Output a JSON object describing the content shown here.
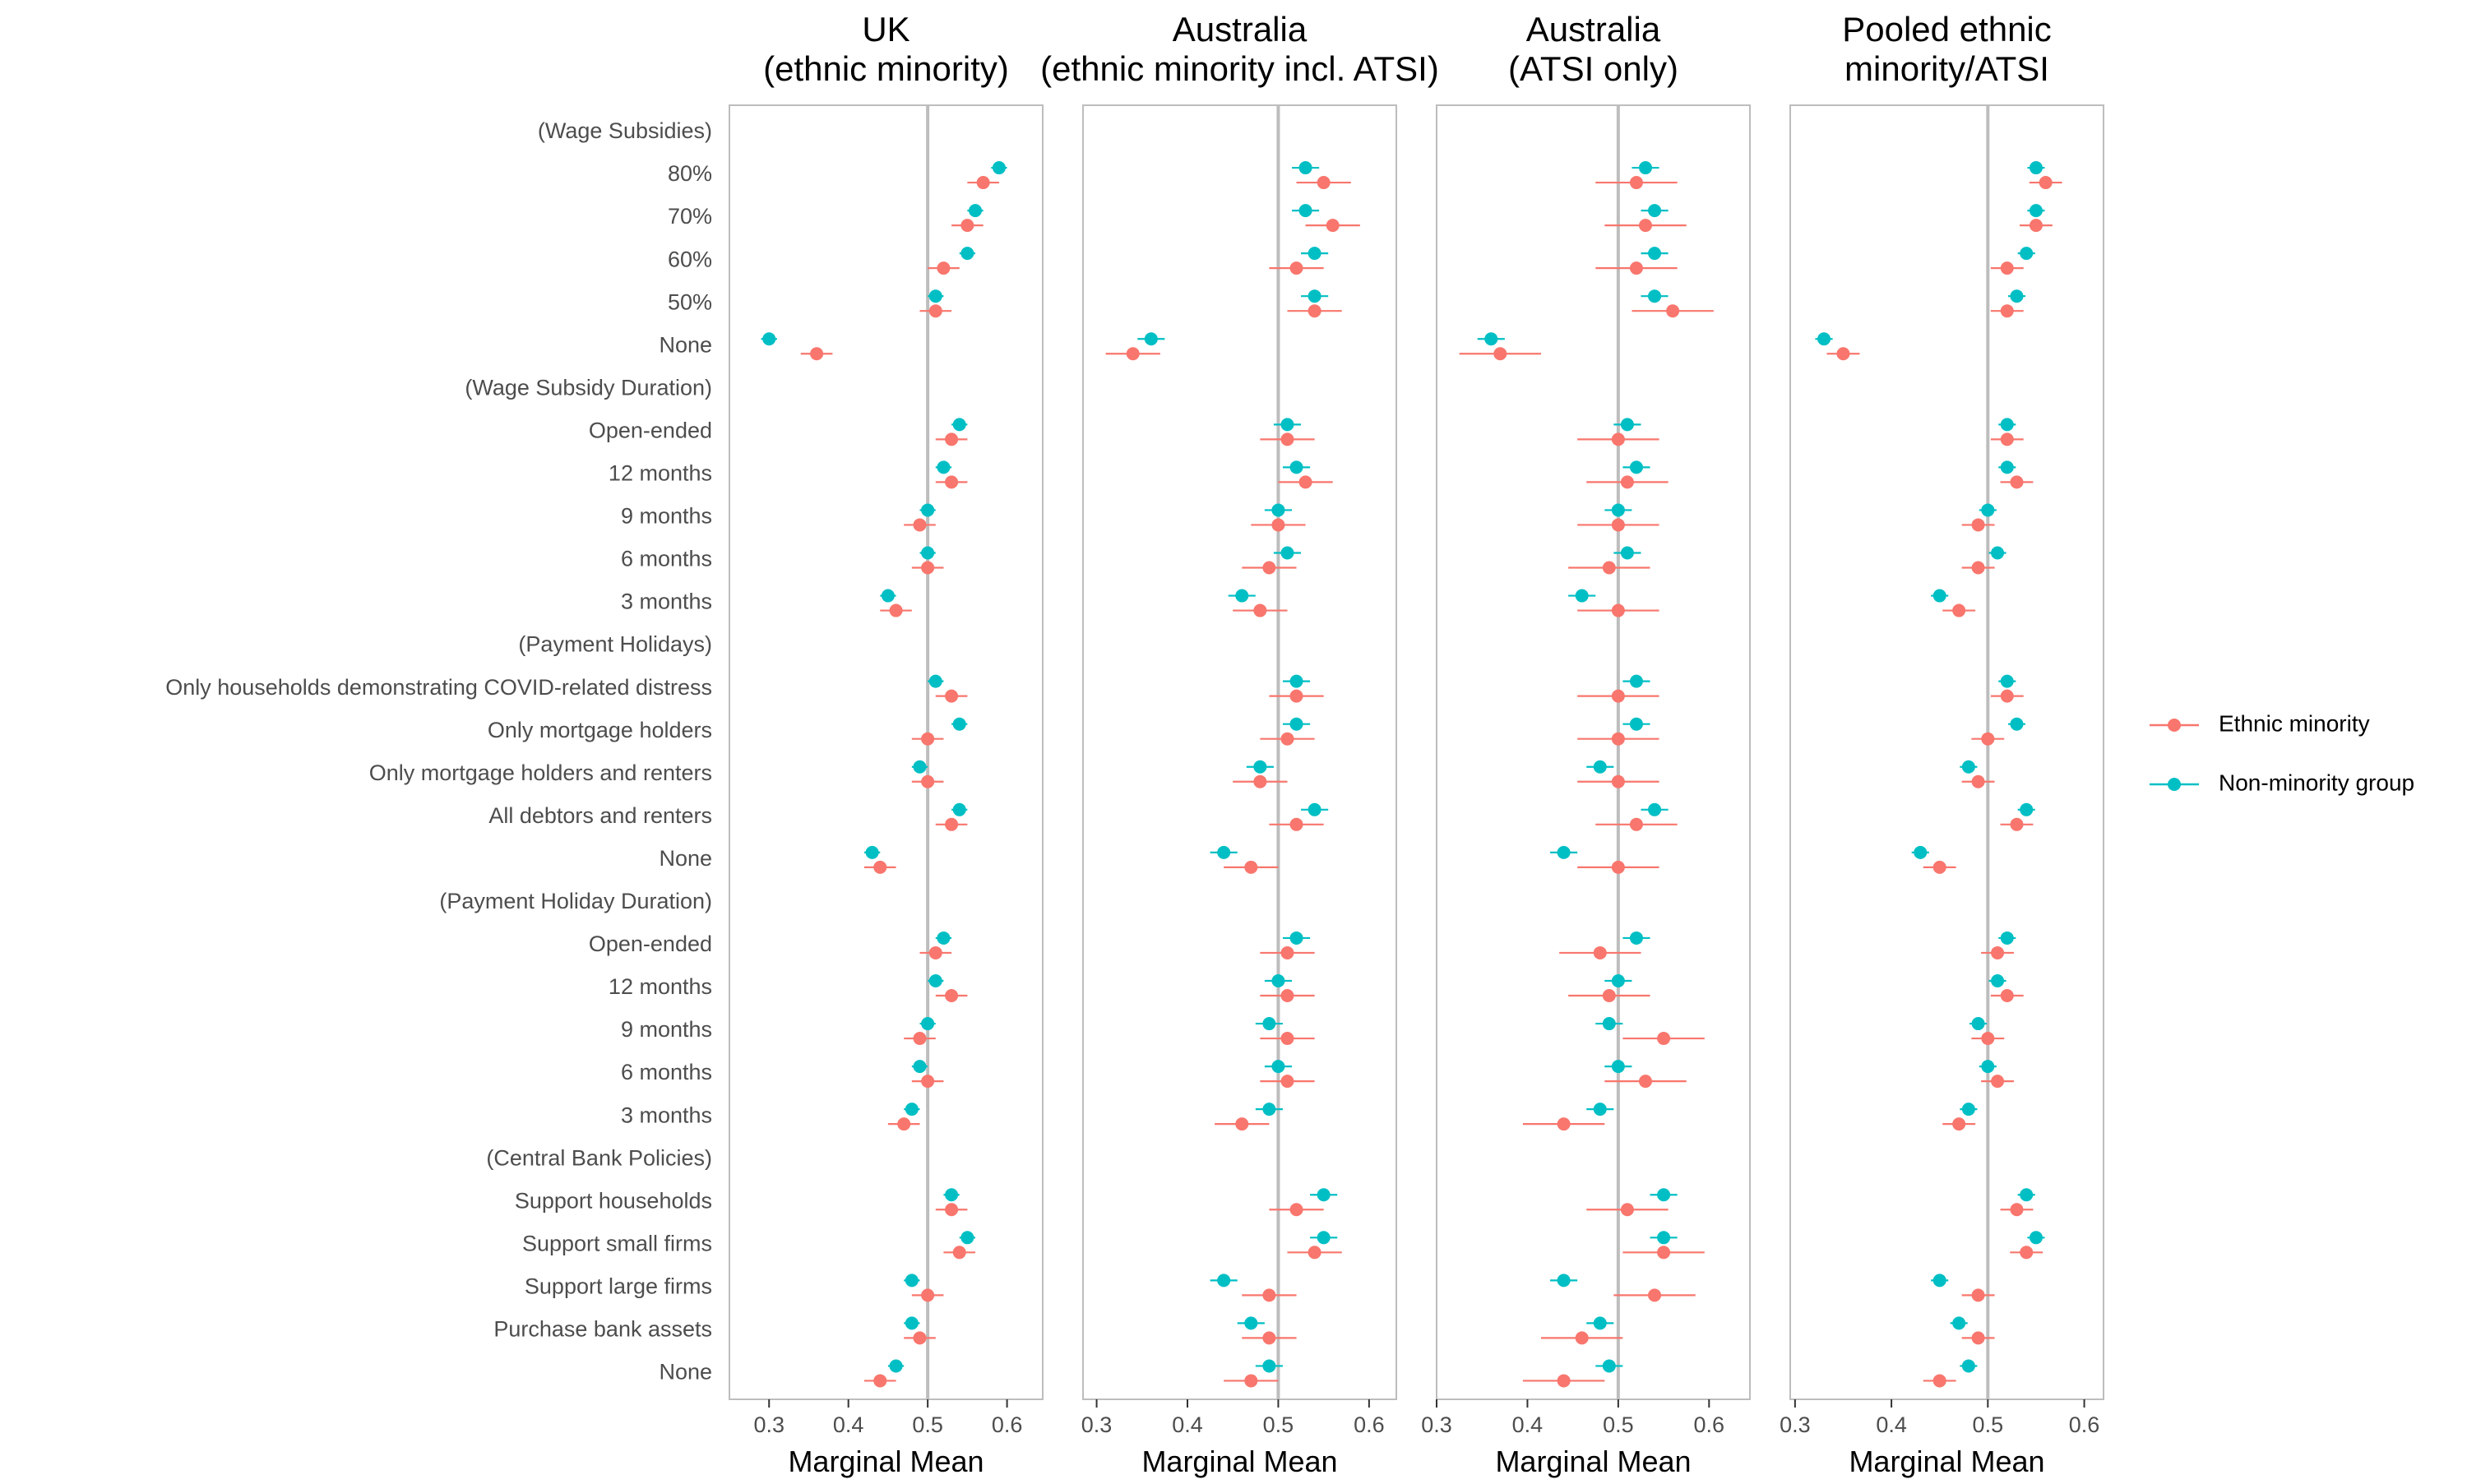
{
  "chart_data": {
    "type": "scatter",
    "subtype": "dot-and-whisker (marginal means with confidence intervals), faceted",
    "xlabel": "Marginal Mean",
    "grid": false,
    "reference_line": 0.5,
    "legend_position": "right",
    "colors": {
      "Ethnic minority": "#F8766D",
      "Non-minority group": "#00BFC4",
      "reference": "#BDBDBD",
      "frame": "#BDBDBD",
      "axis_text": "#4D4D4D"
    },
    "categories": [
      "(Wage Subsidies)",
      "80%",
      "70%",
      "60%",
      "50%",
      "None",
      "(Wage Subsidy Duration)",
      "Open-ended",
      "12 months",
      "9 months",
      "6 months",
      "3 months",
      "(Payment Holidays)",
      "Only households demonstrating COVID-related distress",
      "Only mortgage holders",
      "Only mortgage holders and renters",
      "All debtors and renters",
      "None",
      "(Payment Holiday Duration)",
      "Open-ended",
      "12 months",
      "9 months",
      "6 months",
      "3 months",
      "(Central Bank Policies)",
      "Support households",
      "Support small firms",
      "Support large firms",
      "Purchase bank assets",
      "None"
    ],
    "xticks": [
      "0.3",
      "0.4",
      "0.5",
      "0.6"
    ],
    "legend": [
      "Ethnic minority",
      "Non-minority group"
    ],
    "panels": [
      {
        "title_lines": [
          "UK",
          "(ethnic minority)"
        ],
        "xlim": [
          0.25,
          0.645
        ],
        "series": [
          {
            "name": "Ethnic minority",
            "values": [
              null,
              0.57,
              0.55,
              0.52,
              0.51,
              0.36,
              null,
              0.53,
              0.53,
              0.49,
              0.5,
              0.46,
              null,
              0.53,
              0.5,
              0.5,
              0.53,
              0.44,
              null,
              0.51,
              0.53,
              0.49,
              0.5,
              0.47,
              null,
              0.53,
              0.54,
              0.5,
              0.49,
              0.44
            ],
            "err": [
              null,
              0.02,
              0.02,
              0.02,
              0.02,
              0.02,
              null,
              0.02,
              0.02,
              0.02,
              0.02,
              0.02,
              null,
              0.02,
              0.02,
              0.02,
              0.02,
              0.02,
              null,
              0.02,
              0.02,
              0.02,
              0.02,
              0.02,
              null,
              0.02,
              0.02,
              0.02,
              0.02,
              0.02
            ]
          },
          {
            "name": "Non-minority group",
            "values": [
              null,
              0.59,
              0.56,
              0.55,
              0.51,
              0.3,
              null,
              0.54,
              0.52,
              0.5,
              0.5,
              0.45,
              null,
              0.51,
              0.54,
              0.49,
              0.54,
              0.43,
              null,
              0.52,
              0.51,
              0.5,
              0.49,
              0.48,
              null,
              0.53,
              0.55,
              0.48,
              0.48,
              0.46
            ],
            "err": [
              null,
              0.01,
              0.01,
              0.01,
              0.01,
              0.01,
              null,
              0.01,
              0.01,
              0.01,
              0.01,
              0.01,
              null,
              0.01,
              0.01,
              0.01,
              0.01,
              0.01,
              null,
              0.01,
              0.01,
              0.01,
              0.01,
              0.01,
              null,
              0.01,
              0.01,
              0.01,
              0.01,
              0.01
            ]
          }
        ]
      },
      {
        "title_lines": [
          "Australia",
          "(ethnic minority incl. ATSI)"
        ],
        "xlim": [
          0.285,
          0.63
        ],
        "series": [
          {
            "name": "Ethnic minority",
            "values": [
              null,
              0.55,
              0.56,
              0.52,
              0.54,
              0.34,
              null,
              0.51,
              0.53,
              0.5,
              0.49,
              0.48,
              null,
              0.52,
              0.51,
              0.48,
              0.52,
              0.47,
              null,
              0.51,
              0.51,
              0.51,
              0.51,
              0.46,
              null,
              0.52,
              0.54,
              0.49,
              0.49,
              0.47
            ],
            "err": [
              null,
              0.03,
              0.03,
              0.03,
              0.03,
              0.03,
              null,
              0.03,
              0.03,
              0.03,
              0.03,
              0.03,
              null,
              0.03,
              0.03,
              0.03,
              0.03,
              0.03,
              null,
              0.03,
              0.03,
              0.03,
              0.03,
              0.03,
              null,
              0.03,
              0.03,
              0.03,
              0.03,
              0.03
            ]
          },
          {
            "name": "Non-minority group",
            "values": [
              null,
              0.53,
              0.53,
              0.54,
              0.54,
              0.36,
              null,
              0.51,
              0.52,
              0.5,
              0.51,
              0.46,
              null,
              0.52,
              0.52,
              0.48,
              0.54,
              0.44,
              null,
              0.52,
              0.5,
              0.49,
              0.5,
              0.49,
              null,
              0.55,
              0.55,
              0.44,
              0.47,
              0.49
            ],
            "err": [
              null,
              0.015,
              0.015,
              0.015,
              0.015,
              0.015,
              null,
              0.015,
              0.015,
              0.015,
              0.015,
              0.015,
              null,
              0.015,
              0.015,
              0.015,
              0.015,
              0.015,
              null,
              0.015,
              0.015,
              0.015,
              0.015,
              0.015,
              null,
              0.015,
              0.015,
              0.015,
              0.015,
              0.015
            ]
          }
        ]
      },
      {
        "title_lines": [
          "Australia",
          "(ATSI only)"
        ],
        "xlim": [
          0.3,
          0.645
        ],
        "series": [
          {
            "name": "Ethnic minority",
            "values": [
              null,
              0.52,
              0.53,
              0.52,
              0.56,
              0.37,
              null,
              0.5,
              0.51,
              0.5,
              0.49,
              0.5,
              null,
              0.5,
              0.5,
              0.5,
              0.52,
              0.5,
              null,
              0.48,
              0.49,
              0.55,
              0.53,
              0.44,
              null,
              0.51,
              0.55,
              0.54,
              0.46,
              0.44
            ],
            "err": [
              null,
              0.045,
              0.045,
              0.045,
              0.045,
              0.045,
              null,
              0.045,
              0.045,
              0.045,
              0.045,
              0.045,
              null,
              0.045,
              0.045,
              0.045,
              0.045,
              0.045,
              null,
              0.045,
              0.045,
              0.045,
              0.045,
              0.045,
              null,
              0.045,
              0.045,
              0.045,
              0.045,
              0.045
            ]
          },
          {
            "name": "Non-minority group",
            "values": [
              null,
              0.53,
              0.54,
              0.54,
              0.54,
              0.36,
              null,
              0.51,
              0.52,
              0.5,
              0.51,
              0.46,
              null,
              0.52,
              0.52,
              0.48,
              0.54,
              0.44,
              null,
              0.52,
              0.5,
              0.49,
              0.5,
              0.48,
              null,
              0.55,
              0.55,
              0.44,
              0.48,
              0.49
            ],
            "err": [
              null,
              0.015,
              0.015,
              0.015,
              0.015,
              0.015,
              null,
              0.015,
              0.015,
              0.015,
              0.015,
              0.015,
              null,
              0.015,
              0.015,
              0.015,
              0.015,
              0.015,
              null,
              0.015,
              0.015,
              0.015,
              0.015,
              0.015,
              null,
              0.015,
              0.015,
              0.015,
              0.015,
              0.015
            ]
          }
        ]
      },
      {
        "title_lines": [
          "Pooled ethnic",
          "minority/ATSI"
        ],
        "xlim": [
          0.295,
          0.62
        ],
        "series": [
          {
            "name": "Ethnic minority",
            "values": [
              null,
              0.56,
              0.55,
              0.52,
              0.52,
              0.35,
              null,
              0.52,
              0.53,
              0.49,
              0.49,
              0.47,
              null,
              0.52,
              0.5,
              0.49,
              0.53,
              0.45,
              null,
              0.51,
              0.52,
              0.5,
              0.51,
              0.47,
              null,
              0.53,
              0.54,
              0.49,
              0.49,
              0.45
            ],
            "err": [
              null,
              0.017,
              0.017,
              0.017,
              0.017,
              0.017,
              null,
              0.017,
              0.017,
              0.017,
              0.017,
              0.017,
              null,
              0.017,
              0.017,
              0.017,
              0.017,
              0.017,
              null,
              0.017,
              0.017,
              0.017,
              0.017,
              0.017,
              null,
              0.017,
              0.017,
              0.017,
              0.017,
              0.017
            ]
          },
          {
            "name": "Non-minority group",
            "values": [
              null,
              0.55,
              0.55,
              0.54,
              0.53,
              0.33,
              null,
              0.52,
              0.52,
              0.5,
              0.51,
              0.45,
              null,
              0.52,
              0.53,
              0.48,
              0.54,
              0.43,
              null,
              0.52,
              0.51,
              0.49,
              0.5,
              0.48,
              null,
              0.54,
              0.55,
              0.45,
              0.47,
              0.48
            ],
            "err": [
              null,
              0.009,
              0.009,
              0.009,
              0.009,
              0.009,
              null,
              0.009,
              0.009,
              0.009,
              0.009,
              0.009,
              null,
              0.009,
              0.009,
              0.009,
              0.009,
              0.009,
              null,
              0.009,
              0.009,
              0.009,
              0.009,
              0.009,
              null,
              0.009,
              0.009,
              0.009,
              0.009,
              0.009
            ]
          }
        ]
      }
    ]
  }
}
